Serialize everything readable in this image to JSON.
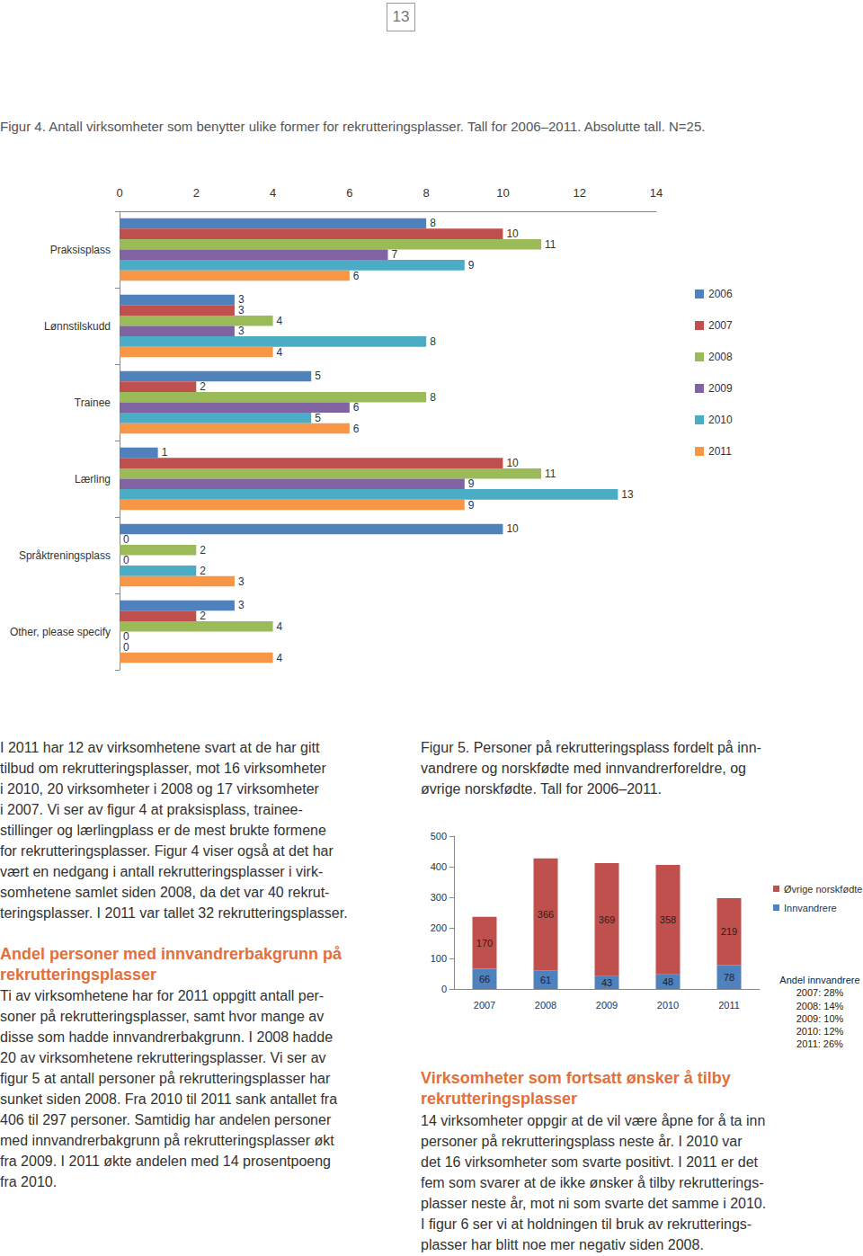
{
  "document": {
    "page_number": "13",
    "figure4_caption": "Figur 4. Antall virksomheter som benytter ulike former for rekrutteringsplasser. Tall for 2006–2011. Absolutte tall. N=25.",
    "left_column": {
      "paragraph1": [
        "I 2011 har 12 av virksomhetene svart at de har gitt",
        "tilbud om rekrutteringsplasser, mot 16 virksomheter",
        "i 2010, 20 virksomheter i 2008 og 17 virksomheter",
        "i 2007. Vi ser av figur 4 at praksisplass, trainee-",
        "stillinger og lærlingplass er de mest brukte formene",
        "for rekrutteringsplasser. Figur 4 viser også at det har",
        "vært en nedgang i antall rekrutteringsplasser i virk-",
        "somhetene samlet siden 2008, da det var 40 rekrut-",
        "teringsplasser. I 2011 var tallet 32 rekrutteringsplasser."
      ],
      "heading": [
        "Andel personer med innvandrerbakgrunn på",
        "rekrutteringsplasser"
      ],
      "paragraph2": [
        "Ti av virksomhetene har for 2011 oppgitt antall per-",
        "soner på rekrutteringsplasser, samt hvor mange av",
        "disse som hadde innvandrerbakgrunn. I 2008 hadde",
        "20 av virksomhetene rekrutteringsplasser. Vi ser av",
        "figur 5 at antall personer på rekrutteringsplasser har",
        "sunket siden 2008. Fra 2010 til 2011 sank antallet fra",
        "406 til 297 personer. Samtidig har andelen personer",
        "med innvandrerbakgrunn på rekrutteringsplasser økt",
        "fra 2009. I 2011 økte andelen med 14 prosentpoeng",
        "fra 2010."
      ]
    },
    "right_column": {
      "figure5_caption": [
        "Figur 5. Personer på rekrutteringsplass fordelt på inn-",
        "vandrere og norskfødte med innvandrerforeldre, og",
        "øvrige norskfødte. Tall for 2006–2011."
      ],
      "heading": [
        "Virksomheter som fortsatt ønsker å tilby",
        "rekrutteringsplasser"
      ],
      "paragraph": [
        "14 virksomheter oppgir at de vil være åpne for å ta inn",
        "personer på rekrutteringsplass neste år. I 2010 var",
        "det 16 virksomheter som svarte positivt. I 2011 er det",
        "fem som svarer at de ikke ønsker å tilby rekrutterings-",
        "plasser neste år, mot ni som svarte det samme i 2010.",
        "I figur 6 ser vi at holdningen til bruk av rekrutterings-",
        "plasser har blitt noe mer negativ siden 2008."
      ]
    }
  },
  "chart_data": [
    {
      "type": "bar",
      "orientation": "horizontal",
      "categories": [
        "Praksisplass",
        "Lønnstilskudd",
        "Trainee",
        "Lærling",
        "Språktreningsplass",
        "Other, please specify"
      ],
      "series": [
        {
          "name": "2006",
          "color": "#4f81bd",
          "values": [
            8,
            3,
            5,
            1,
            10,
            3
          ]
        },
        {
          "name": "2007",
          "color": "#c0504d",
          "values": [
            10,
            3,
            2,
            10,
            0,
            2
          ]
        },
        {
          "name": "2008",
          "color": "#9bbb59",
          "values": [
            11,
            4,
            8,
            11,
            2,
            4
          ]
        },
        {
          "name": "2009",
          "color": "#8064a2",
          "values": [
            7,
            3,
            6,
            9,
            0,
            0
          ]
        },
        {
          "name": "2010",
          "color": "#4bacc6",
          "values": [
            9,
            8,
            5,
            13,
            2,
            0
          ]
        },
        {
          "name": "2011",
          "color": "#f79646",
          "values": [
            6,
            4,
            6,
            9,
            3,
            4
          ]
        }
      ],
      "xlim": [
        0,
        14
      ],
      "xticks": [
        0,
        2,
        4,
        6,
        8,
        10,
        12,
        14
      ],
      "grid": false,
      "legend": "right",
      "data_labels": true
    },
    {
      "type": "bar",
      "stacked": true,
      "categories": [
        "2007",
        "2008",
        "2009",
        "2010",
        "2011"
      ],
      "series": [
        {
          "name": "Innvandrere",
          "color": "#4f81bd",
          "values": [
            66,
            61,
            43,
            48,
            78
          ]
        },
        {
          "name": "Øvrige norskfødte",
          "color": "#c0504d",
          "values": [
            170,
            366,
            369,
            358,
            219
          ]
        }
      ],
      "ylim": [
        0,
        500
      ],
      "yticks": [
        0,
        100,
        200,
        300,
        400,
        500
      ],
      "grid": false,
      "legend": "right",
      "data_labels": true,
      "annotations": [
        "Andel innvandrere",
        "2007: 28%",
        "2008: 14%",
        "2009: 10%",
        "2010: 12%",
        "2011: 26%"
      ]
    }
  ]
}
